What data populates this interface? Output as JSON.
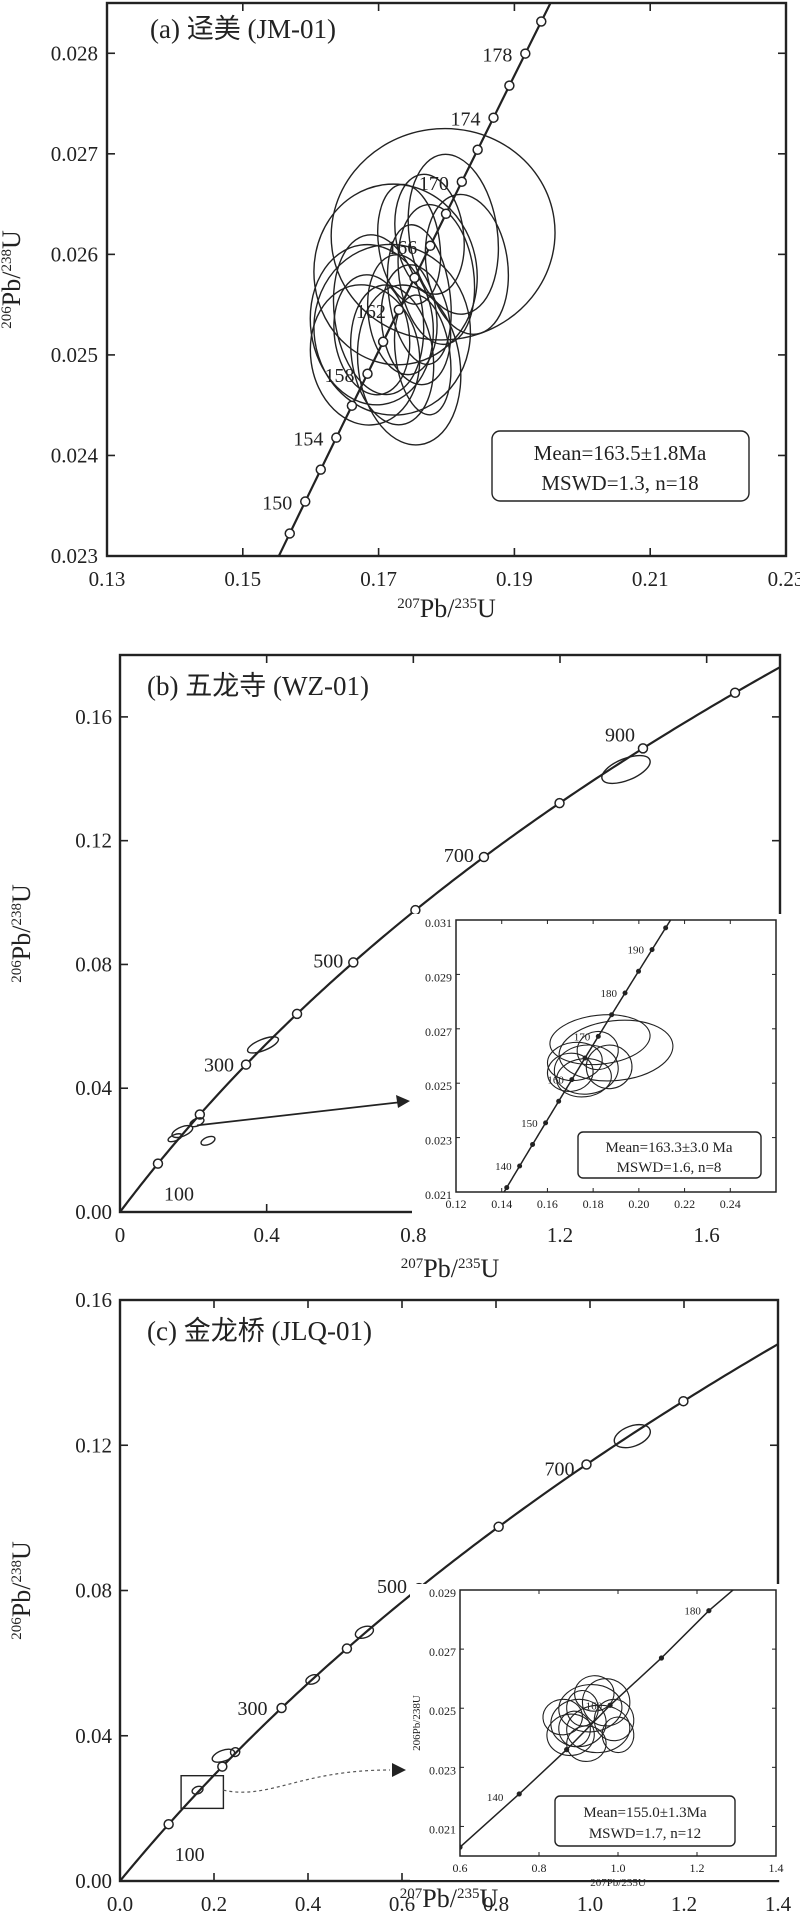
{
  "chart_data": [
    {
      "id": "a",
      "type": "scatter",
      "subtype": "U-Pb concordia with error ellipses",
      "title": "(a) 迳美 (JM-01)",
      "xlabel": "207Pb/235U",
      "ylabel": "206Pb/238U",
      "xlim": [
        0.13,
        0.23
      ],
      "ylim": [
        0.023,
        0.0285
      ],
      "xticks": [
        "0.13",
        "0.15",
        "0.17",
        "0.19",
        "0.21",
        "0.23"
      ],
      "yticks": [
        "0.023",
        "0.024",
        "0.025",
        "0.026",
        "0.027",
        "0.028"
      ],
      "concordia_labels": [
        "150",
        "154",
        "158",
        "162",
        "166",
        "170",
        "174",
        "178"
      ],
      "concordia_ages_marked": [
        146,
        148,
        150,
        152,
        154,
        156,
        158,
        160,
        162,
        164,
        166,
        168,
        170,
        172,
        174,
        176,
        178,
        180
      ],
      "ellipses": [
        {
          "x": 0.1795,
          "y": 0.0262,
          "rx": 0.0165,
          "ry": 0.00105
        },
        {
          "x": 0.1725,
          "y": 0.0258,
          "rx": 0.012,
          "ry": 0.0009
        },
        {
          "x": 0.172,
          "y": 0.02525,
          "rx": 0.0115,
          "ry": 0.00085
        },
        {
          "x": 0.169,
          "y": 0.0253,
          "rx": 0.009,
          "ry": 0.0008
        },
        {
          "x": 0.1745,
          "y": 0.0249,
          "rx": 0.0075,
          "ry": 0.0008
        },
        {
          "x": 0.181,
          "y": 0.0262,
          "rx": 0.0065,
          "ry": 0.0008
        },
        {
          "x": 0.1775,
          "y": 0.0262,
          "rx": 0.005,
          "ry": 0.0006
        },
        {
          "x": 0.17,
          "y": 0.0254,
          "rx": 0.0065,
          "ry": 0.0008
        },
        {
          "x": 0.176,
          "y": 0.0256,
          "rx": 0.0045,
          "ry": 0.0007
        },
        {
          "x": 0.169,
          "y": 0.0252,
          "rx": 0.0055,
          "ry": 0.0006
        },
        {
          "x": 0.1735,
          "y": 0.0254,
          "rx": 0.005,
          "ry": 0.0006
        },
        {
          "x": 0.1785,
          "y": 0.0258,
          "rx": 0.0055,
          "ry": 0.0007
        },
        {
          "x": 0.172,
          "y": 0.025,
          "rx": 0.006,
          "ry": 0.0007
        },
        {
          "x": 0.1745,
          "y": 0.0261,
          "rx": 0.0045,
          "ry": 0.0006
        },
        {
          "x": 0.168,
          "y": 0.025,
          "rx": 0.008,
          "ry": 0.0007
        },
        {
          "x": 0.183,
          "y": 0.0259,
          "rx": 0.006,
          "ry": 0.0007
        },
        {
          "x": 0.1765,
          "y": 0.025,
          "rx": 0.004,
          "ry": 0.0006
        },
        {
          "x": 0.1755,
          "y": 0.0253,
          "rx": 0.005,
          "ry": 0.0006
        }
      ],
      "stats": [
        "Mean=163.5±1.8Ma",
        "MSWD=1.3, n=18"
      ]
    },
    {
      "id": "b",
      "type": "scatter",
      "subtype": "U-Pb concordia with error ellipses",
      "title": "(b) 五龙寺 (WZ-01)",
      "xlabel": "207Pb/235U",
      "ylabel": "206Pb/238U",
      "xlim": [
        0,
        1.8
      ],
      "ylim": [
        0,
        0.18
      ],
      "xticks": [
        "0",
        "0.4",
        "0.8",
        "1.2",
        "1.6"
      ],
      "yticks": [
        "0.00",
        "0.04",
        "0.08",
        "0.12",
        "0.16"
      ],
      "concordia_labels": [
        "100",
        "300",
        "500",
        "700",
        "900"
      ],
      "concordia_ages_marked": [
        100,
        200,
        300,
        400,
        500,
        600,
        700,
        800,
        900,
        1000
      ],
      "ellipses": [
        {
          "x": 0.39,
          "y": 0.054,
          "rx": 0.045,
          "ry": 0.0018
        },
        {
          "x": 1.38,
          "y": 0.143,
          "rx": 0.07,
          "ry": 0.0035
        },
        {
          "x": 0.17,
          "y": 0.026,
          "rx": 0.03,
          "ry": 0.0015
        },
        {
          "x": 0.21,
          "y": 0.029,
          "rx": 0.02,
          "ry": 0.0012
        },
        {
          "x": 0.24,
          "y": 0.023,
          "rx": 0.02,
          "ry": 0.0012
        },
        {
          "x": 0.15,
          "y": 0.024,
          "rx": 0.02,
          "ry": 0.001
        }
      ],
      "inset": {
        "xlim": [
          0.12,
          0.26
        ],
        "ylim": [
          0.021,
          0.031
        ],
        "xticks": [
          "0.12",
          "0.14",
          "0.16",
          "0.18",
          "0.20",
          "0.22",
          "0.24"
        ],
        "yticks": [
          "0.021",
          "0.023",
          "0.025",
          "0.027",
          "0.029",
          "0.031"
        ],
        "concordia_labels": [
          "140",
          "150",
          "160",
          "170",
          "180",
          "190"
        ],
        "ellipses": [
          {
            "x": 0.19,
            "y": 0.0262,
            "rx": 0.025,
            "ry": 0.0011
          },
          {
            "x": 0.183,
            "y": 0.0266,
            "rx": 0.022,
            "ry": 0.0009
          },
          {
            "x": 0.177,
            "y": 0.0255,
            "rx": 0.014,
            "ry": 0.0009
          },
          {
            "x": 0.172,
            "y": 0.0258,
            "rx": 0.012,
            "ry": 0.0007
          },
          {
            "x": 0.176,
            "y": 0.0252,
            "rx": 0.012,
            "ry": 0.0007
          },
          {
            "x": 0.17,
            "y": 0.0254,
            "rx": 0.01,
            "ry": 0.0007
          },
          {
            "x": 0.182,
            "y": 0.0262,
            "rx": 0.009,
            "ry": 0.0007
          },
          {
            "x": 0.187,
            "y": 0.0256,
            "rx": 0.01,
            "ry": 0.0008
          }
        ],
        "stats": [
          "Mean=163.3±3.0 Ma",
          "MSWD=1.6, n=8"
        ]
      }
    },
    {
      "id": "c",
      "type": "scatter",
      "subtype": "U-Pb concordia with error ellipses",
      "title": "(c) 金龙桥 (JLQ-01)",
      "xlabel": "207Pb/235U",
      "ylabel": "206Pb/238U",
      "xlim": [
        0,
        1.4
      ],
      "ylim": [
        0,
        0.16
      ],
      "xticks": [
        "0.0",
        "0.2",
        "0.4",
        "0.6",
        "0.8",
        "1.0",
        "1.2",
        "1.4"
      ],
      "yticks": [
        "0.00",
        "0.04",
        "0.08",
        "0.12",
        "0.16"
      ],
      "concordia_labels": [
        "100",
        "300",
        "500",
        "700"
      ],
      "concordia_ages_marked": [
        100,
        200,
        300,
        400,
        500,
        600,
        700,
        800
      ],
      "ellipses": [
        {
          "x": 1.09,
          "y": 0.1225,
          "rx": 0.04,
          "ry": 0.0028
        },
        {
          "x": 0.52,
          "y": 0.0685,
          "rx": 0.02,
          "ry": 0.0015
        },
        {
          "x": 0.41,
          "y": 0.0555,
          "rx": 0.015,
          "ry": 0.0012
        },
        {
          "x": 0.22,
          "y": 0.0345,
          "rx": 0.025,
          "ry": 0.0015
        },
        {
          "x": 0.245,
          "y": 0.0355,
          "rx": 0.01,
          "ry": 0.0012
        },
        {
          "x": 0.165,
          "y": 0.025,
          "rx": 0.012,
          "ry": 0.001
        }
      ],
      "inset": {
        "xlim": [
          0.6,
          1.4
        ],
        "ylim": [
          0.02,
          0.029
        ],
        "xticks": [
          "0.6",
          "0.8",
          "1.0",
          "1.2",
          "1.4"
        ],
        "yticks": [
          "0.021",
          "0.023",
          "0.025",
          "0.027",
          "0.029"
        ],
        "xlabel": "207Pb/235U",
        "ylabel": "206Pb/238U",
        "concordia_labels": [
          "140",
          "160",
          "180"
        ],
        "ellipses": [
          {
            "x": 0.93,
            "y": 0.025,
            "rx": 0.08,
            "ry": 0.0008
          },
          {
            "x": 0.9,
            "y": 0.0245,
            "rx": 0.07,
            "ry": 0.0008
          },
          {
            "x": 0.95,
            "y": 0.0243,
            "rx": 0.08,
            "ry": 0.0008
          },
          {
            "x": 0.88,
            "y": 0.0241,
            "rx": 0.06,
            "ry": 0.0007
          },
          {
            "x": 0.97,
            "y": 0.0252,
            "rx": 0.06,
            "ry": 0.0008
          },
          {
            "x": 0.92,
            "y": 0.0238,
            "rx": 0.05,
            "ry": 0.0006
          },
          {
            "x": 0.99,
            "y": 0.0246,
            "rx": 0.05,
            "ry": 0.0007
          },
          {
            "x": 0.86,
            "y": 0.0247,
            "rx": 0.05,
            "ry": 0.0006
          },
          {
            "x": 0.94,
            "y": 0.0255,
            "rx": 0.05,
            "ry": 0.0006
          },
          {
            "x": 0.91,
            "y": 0.025,
            "rx": 0.04,
            "ry": 0.0006
          },
          {
            "x": 1.0,
            "y": 0.0241,
            "rx": 0.04,
            "ry": 0.0006
          },
          {
            "x": 0.89,
            "y": 0.0243,
            "rx": 0.04,
            "ry": 0.0006
          }
        ],
        "stats": [
          "Mean=155.0±1.3Ma",
          "MSWD=1.7, n=12"
        ]
      }
    }
  ]
}
